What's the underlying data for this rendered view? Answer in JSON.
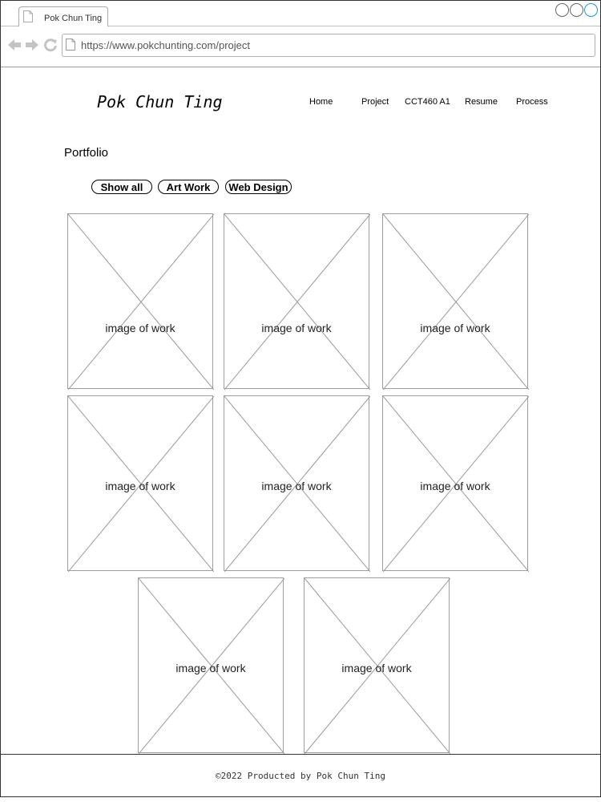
{
  "browser": {
    "tab_title": "Pok Chun Ting",
    "url": "https://www.pokchunting.com/project"
  },
  "site": {
    "logo": "Pok Chun Ting",
    "nav": [
      "Home",
      "Project",
      "CCT460 A1",
      "Resume",
      "Process"
    ]
  },
  "portfolio": {
    "title": "Portfolio",
    "filters": [
      "Show all",
      "Art Work",
      "Web Design"
    ],
    "tiles": [
      {
        "label": "image of work"
      },
      {
        "label": "image of work"
      },
      {
        "label": "image of work"
      },
      {
        "label": "image of work"
      },
      {
        "label": "image of work"
      },
      {
        "label": "image of work"
      },
      {
        "label": "image of work"
      },
      {
        "label": "image of work"
      }
    ]
  },
  "footer": {
    "text": "©2022 Producted by Pok Chun Ting"
  }
}
